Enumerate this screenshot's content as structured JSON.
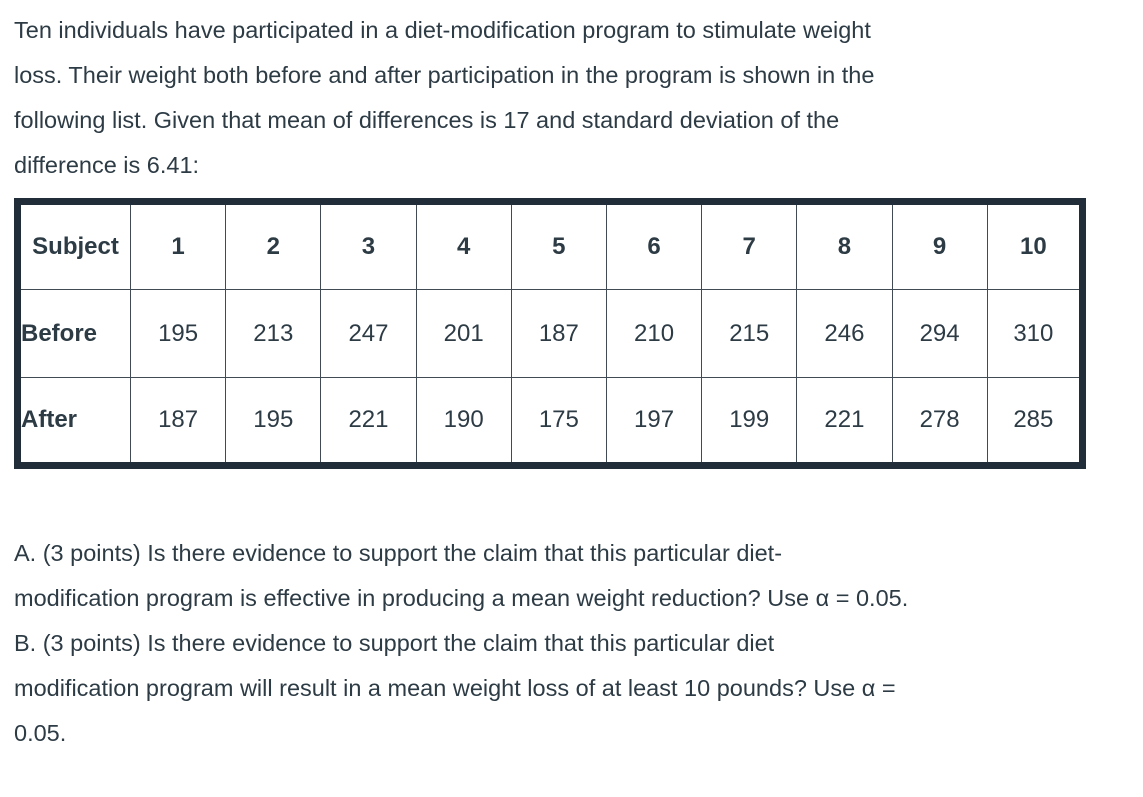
{
  "colors": {
    "text": "#2d3b45",
    "table_border": "#212e3a",
    "grid_line": "#404b54",
    "background": "#ffffff"
  },
  "intro": {
    "lines": [
      "Ten individuals have participated in a diet-modification program to stimulate weight",
      "loss. Their weight both before and after participation in the program is shown in the",
      "following list. Given that mean of differences is 17 and standard deviation of the",
      "difference is 6.41:"
    ]
  },
  "table": {
    "header": {
      "label": "Subject",
      "subjects": [
        "1",
        "2",
        "3",
        "4",
        "5",
        "6",
        "7",
        "8",
        "9",
        "10"
      ]
    },
    "rows": [
      {
        "label": "Before",
        "values": [
          "195",
          "213",
          "247",
          "201",
          "187",
          "210",
          "215",
          "246",
          "294",
          "310"
        ]
      },
      {
        "label": "After",
        "values": [
          "187",
          "195",
          "221",
          "190",
          "175",
          "197",
          "199",
          "221",
          "278",
          "285"
        ]
      }
    ]
  },
  "questions": {
    "lines": [
      "A. (3 points) Is there evidence to support the claim that this particular diet-",
      "modification program is effective in producing a mean weight reduction? Use α = 0.05.",
      "B. (3 points) Is there evidence to support the claim that this particular diet",
      "modification program will result in a mean weight loss of at least 10 pounds? Use α =",
      "0.05."
    ]
  }
}
